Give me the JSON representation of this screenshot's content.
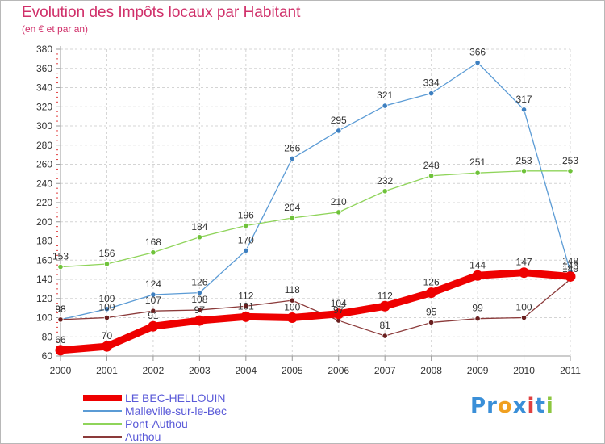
{
  "chart_data": {
    "type": "line",
    "title": "Evolution des Impôts locaux par Habitant",
    "subtitle": "(en € et par an)",
    "categories": [
      "2000",
      "2001",
      "2002",
      "2003",
      "2004",
      "2005",
      "2006",
      "2007",
      "2008",
      "2009",
      "2010",
      "2011"
    ],
    "y_ticks": [
      "60",
      "80",
      "100",
      "120",
      "140",
      "160",
      "180",
      "200",
      "220",
      "240",
      "260",
      "280",
      "300",
      "320",
      "340",
      "360",
      "380"
    ],
    "ylim": [
      60,
      380
    ],
    "grid": true,
    "legend_position": "bottom-left",
    "series": [
      {
        "name": "Malleville-sur-le-Bec",
        "color": "#5b9bd5",
        "marker": "#3d7fc0",
        "values": [
          98,
          109,
          124,
          126,
          170,
          266,
          295,
          321,
          334,
          366,
          317,
          148
        ],
        "labels": [
          "98",
          "109",
          "124",
          "126",
          "170",
          "266",
          "295",
          "321",
          "334",
          "366",
          "317",
          "148"
        ]
      },
      {
        "name": "Pont-Authou",
        "color": "#8fd45a",
        "marker": "#6fc23a",
        "values": [
          153,
          156,
          168,
          184,
          196,
          204,
          210,
          232,
          248,
          251,
          253,
          253
        ],
        "labels": [
          "153",
          "156",
          "168",
          "184",
          "196",
          "204",
          "210",
          "232",
          "248",
          "251",
          "253",
          "253"
        ]
      },
      {
        "name": "Authou",
        "color": "#8b3a3a",
        "marker": "#6a1f1f",
        "values": [
          98,
          100,
          107,
          108,
          112,
          118,
          97,
          81,
          95,
          99,
          100,
          140
        ],
        "labels": [
          "98",
          "100",
          "107",
          "108",
          "112",
          "118",
          "97",
          "81",
          "95",
          "99",
          "100",
          "140"
        ]
      },
      {
        "name": "LE BEC-HELLOUIN",
        "color": "#ee0000",
        "marker": "#ee0000",
        "values": [
          66,
          70,
          91,
          97,
          101,
          100,
          104,
          112,
          126,
          144,
          147,
          143
        ],
        "labels": [
          "66",
          "70",
          "91",
          "97",
          "101",
          "100",
          "104",
          "112",
          "126",
          "144",
          "147",
          "143"
        ]
      }
    ]
  },
  "legend": [
    {
      "label": "LE BEC-HELLOUIN",
      "color": "#ee0000"
    },
    {
      "label": "Malleville-sur-le-Bec",
      "color": "#5b9bd5"
    },
    {
      "label": "Pont-Authou",
      "color": "#8fd45a"
    },
    {
      "label": "Authou",
      "color": "#8b3a3a"
    }
  ],
  "logo": {
    "letters": [
      {
        "ch": "P",
        "color": "#3a8fd8"
      },
      {
        "ch": "r",
        "color": "#3a8fd8"
      },
      {
        "ch": "o",
        "color": "#f0a020"
      },
      {
        "ch": "x",
        "color": "#3a8fd8"
      },
      {
        "ch": "i",
        "color": "#e04040"
      },
      {
        "ch": "t",
        "color": "#3a8fd8"
      },
      {
        "ch": "i",
        "color": "#8cc63f"
      }
    ]
  }
}
